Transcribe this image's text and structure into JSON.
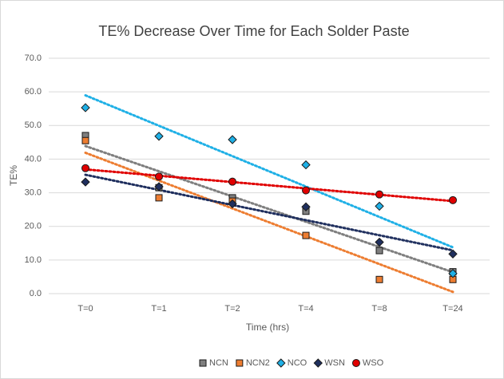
{
  "chart_data": {
    "type": "scatter",
    "title": "TE% Decrease Over Time for Each Solder Paste",
    "x_label": "Time (hrs)",
    "y_label": "TE%",
    "categories": [
      "T=0",
      "T=1",
      "T=2",
      "T=4",
      "T=8",
      "T=24"
    ],
    "ylim": [
      0,
      70
    ],
    "yticks": [
      {
        "value": 0,
        "label": "0.0"
      },
      {
        "value": 10,
        "label": "10.0"
      },
      {
        "value": 20,
        "label": "20.0"
      },
      {
        "value": 30,
        "label": "30.0"
      },
      {
        "value": 40,
        "label": "40.0"
      },
      {
        "value": 50,
        "label": "50.0"
      },
      {
        "value": 60,
        "label": "60.0"
      },
      {
        "value": 70,
        "label": "70.0"
      }
    ],
    "grid": true,
    "trendline": "linear",
    "legend": "bottom",
    "series": [
      {
        "name": "NCN",
        "color": "#7f7f7f",
        "marker": "square",
        "values": [
          47,
          31.5,
          28.5,
          24.5,
          12.8,
          6.5
        ]
      },
      {
        "name": "NCN2",
        "color": "#ed7d31",
        "marker": "square",
        "values": [
          45.5,
          28.5,
          27.5,
          17.3,
          4.2,
          4.2
        ]
      },
      {
        "name": "NCO",
        "color": "#1fb0e6",
        "marker": "diamond",
        "values": [
          55.3,
          46.8,
          45.8,
          38.3,
          26,
          6
        ]
      },
      {
        "name": "WSN",
        "color": "#1f2f5e",
        "marker": "diamond",
        "values": [
          33.2,
          31.8,
          26.7,
          25.8,
          15.3,
          11.8
        ]
      },
      {
        "name": "WSO",
        "color": "#e00000",
        "marker": "circle",
        "values": [
          37.3,
          34.8,
          33.3,
          30.7,
          29.5,
          27.8
        ]
      }
    ]
  }
}
